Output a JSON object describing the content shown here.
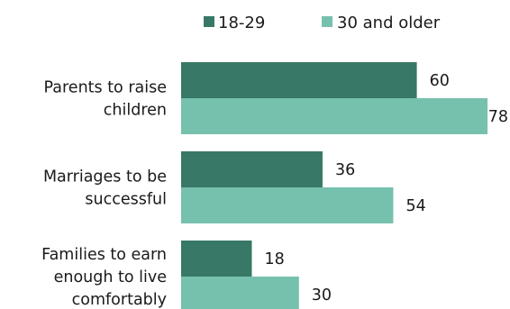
{
  "chart_data": {
    "type": "bar",
    "orientation": "horizontal",
    "categories": [
      [
        "Parents to raise",
        "children"
      ],
      [
        "Marriages to be",
        "successful"
      ],
      [
        "Families to earn",
        "enough to live",
        "comfortably"
      ]
    ],
    "series": [
      {
        "name": "18-29",
        "color": "#387866",
        "values": [
          60,
          36,
          18
        ]
      },
      {
        "name": "30 and older",
        "color": "#76c0ae",
        "values": [
          78,
          54,
          30
        ]
      }
    ],
    "xlim": [
      0,
      78
    ],
    "legend": "top",
    "grid": false,
    "title": "",
    "xlabel": "",
    "ylabel": ""
  }
}
